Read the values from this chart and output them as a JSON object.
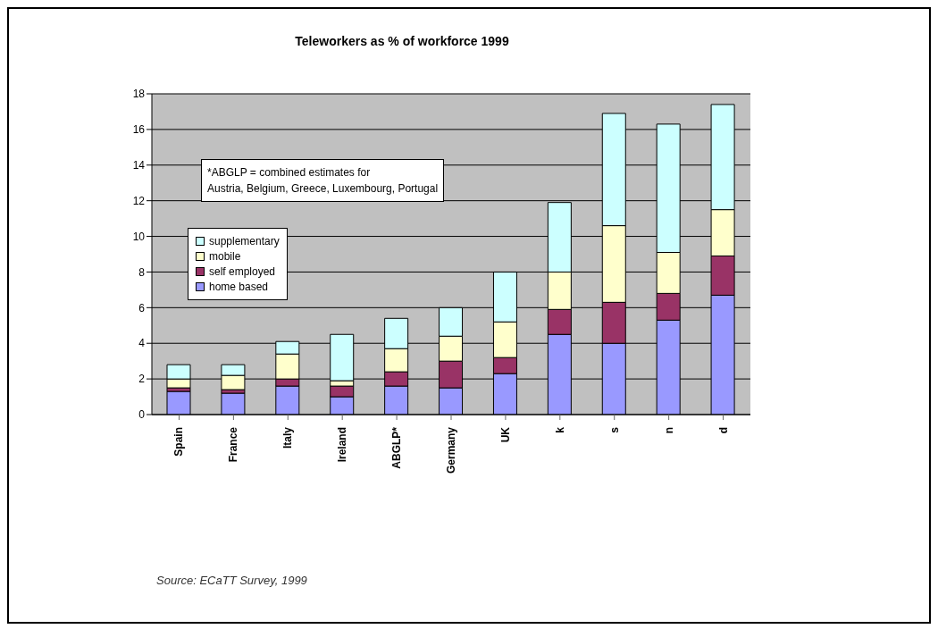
{
  "chart_data": {
    "type": "bar",
    "title": "Teleworkers as % of workforce 1999",
    "categories": [
      "Spain",
      "France",
      "Italy",
      "Ireland",
      "ABGLP*",
      "Germany",
      "UK",
      "k",
      "s",
      "n",
      "d"
    ],
    "series": [
      {
        "name": "home based",
        "color": "#9999ff",
        "values": [
          1.3,
          1.2,
          1.6,
          1.0,
          1.6,
          1.5,
          2.3,
          4.5,
          4.0,
          5.3,
          6.7
        ]
      },
      {
        "name": "self employed",
        "color": "#993366",
        "values": [
          0.2,
          0.2,
          0.4,
          0.6,
          0.8,
          1.5,
          0.9,
          1.4,
          2.3,
          1.5,
          2.2
        ]
      },
      {
        "name": "mobile",
        "color": "#ffffcc",
        "values": [
          0.5,
          0.8,
          1.4,
          0.3,
          1.3,
          1.4,
          2.0,
          2.1,
          4.3,
          2.3,
          2.6
        ]
      },
      {
        "name": "supplementary",
        "color": "#ccffff",
        "values": [
          0.8,
          0.6,
          0.7,
          2.6,
          1.7,
          1.6,
          2.8,
          3.9,
          6.3,
          7.2,
          5.9
        ]
      }
    ],
    "stacked": true,
    "ylim": [
      0,
      18
    ],
    "yticks": [
      0,
      2,
      4,
      6,
      8,
      10,
      12,
      14,
      16,
      18
    ],
    "grid": "y",
    "legend": "left",
    "annotations": [
      "*ABGLP = combined estimates for\nAustria, Belgium, Greece, Luxembourg, Portugal",
      "Source: ECaTT Survey, 1999"
    ]
  }
}
